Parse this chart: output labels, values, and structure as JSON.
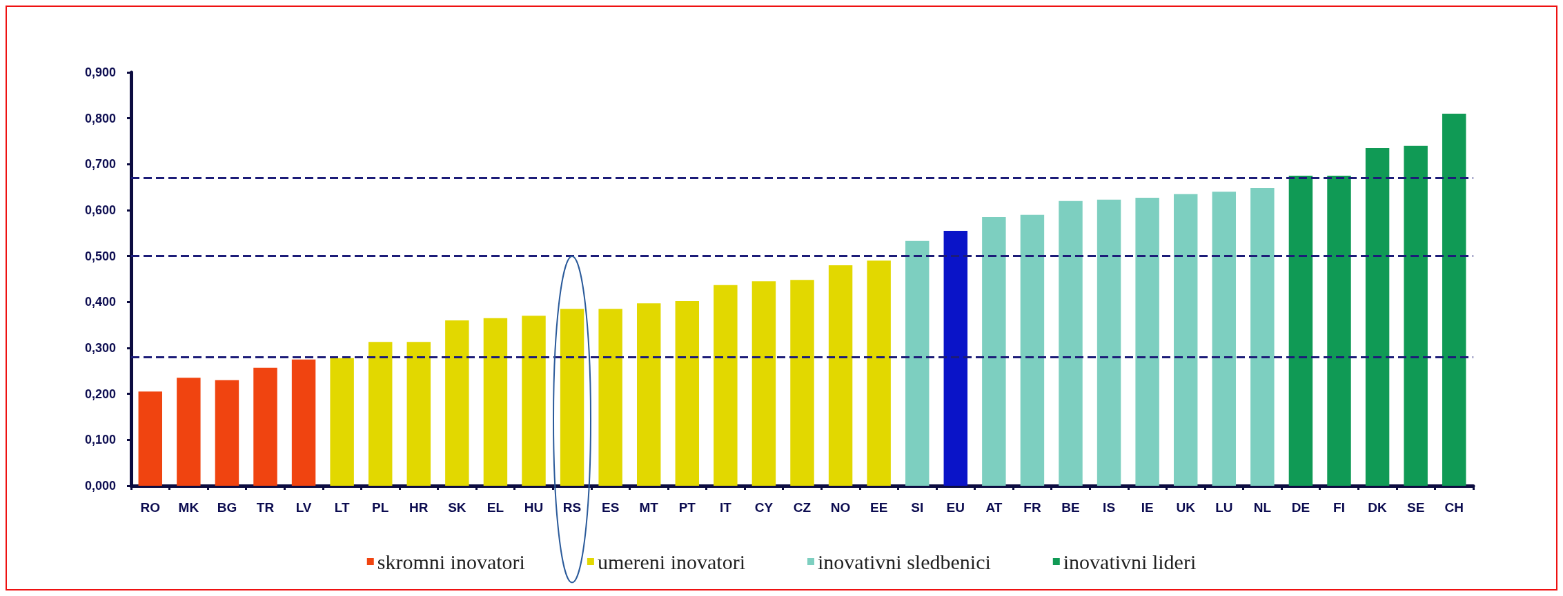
{
  "chart_data": {
    "type": "bar",
    "categories": [
      "RO",
      "MK",
      "BG",
      "TR",
      "LV",
      "LT",
      "PL",
      "HR",
      "SK",
      "EL",
      "HU",
      "RS",
      "ES",
      "MT",
      "PT",
      "IT",
      "CY",
      "CZ",
      "NO",
      "EE",
      "SI",
      "EU",
      "AT",
      "FR",
      "BE",
      "IS",
      "IE",
      "UK",
      "LU",
      "NL",
      "DE",
      "FI",
      "DK",
      "SE",
      "CH"
    ],
    "series": [
      {
        "name": "skromni inovatori",
        "color": "#f04410",
        "values": [
          0.205,
          0.235,
          0.23,
          0.257,
          0.275,
          null,
          null,
          null,
          null,
          null,
          null,
          null,
          null,
          null,
          null,
          null,
          null,
          null,
          null,
          null,
          null,
          null,
          null,
          null,
          null,
          null,
          null,
          null,
          null,
          null,
          null,
          null,
          null,
          null,
          null
        ]
      },
      {
        "name": "umereni inovatori",
        "color": "#e2d800",
        "values": [
          null,
          null,
          null,
          null,
          null,
          0.278,
          0.313,
          0.313,
          0.36,
          0.365,
          0.37,
          0.385,
          0.385,
          0.397,
          0.402,
          0.437,
          0.445,
          0.448,
          0.48,
          0.49,
          null,
          null,
          null,
          null,
          null,
          null,
          null,
          null,
          null,
          null,
          null,
          null,
          null,
          null,
          null
        ]
      },
      {
        "name": "inovativni sledbenici",
        "color": "#7dcfc0",
        "values": [
          null,
          null,
          null,
          null,
          null,
          null,
          null,
          null,
          null,
          null,
          null,
          null,
          null,
          null,
          null,
          null,
          null,
          null,
          null,
          null,
          0.533,
          null,
          0.585,
          0.59,
          0.62,
          0.623,
          0.627,
          0.635,
          0.64,
          0.648,
          null,
          null,
          null,
          null,
          null
        ]
      },
      {
        "color": "#0a14c8",
        "values": [
          null,
          null,
          null,
          null,
          null,
          null,
          null,
          null,
          null,
          null,
          null,
          null,
          null,
          null,
          null,
          null,
          null,
          null,
          null,
          null,
          null,
          0.555,
          null,
          null,
          null,
          null,
          null,
          null,
          null,
          null,
          null,
          null,
          null,
          null,
          null
        ]
      },
      {
        "name": "inovativni lideri",
        "color": "#109a55",
        "values": [
          null,
          null,
          null,
          null,
          null,
          null,
          null,
          null,
          null,
          null,
          null,
          null,
          null,
          null,
          null,
          null,
          null,
          null,
          null,
          null,
          null,
          null,
          null,
          null,
          null,
          null,
          null,
          null,
          null,
          null,
          0.675,
          0.675,
          0.735,
          0.74,
          0.81
        ]
      }
    ],
    "ylim": [
      0,
      0.9
    ],
    "yticks": [
      {
        "value": 0,
        "label": "0,000"
      },
      {
        "value": 0.1,
        "label": "0,100"
      },
      {
        "value": 0.2,
        "label": "0,200"
      },
      {
        "value": 0.3,
        "label": "0,300"
      },
      {
        "value": 0.4,
        "label": "0,400"
      },
      {
        "value": 0.5,
        "label": "0,500"
      },
      {
        "value": 0.6,
        "label": "0,600"
      },
      {
        "value": 0.7,
        "label": "0,700"
      },
      {
        "value": 0.8,
        "label": "0,800"
      },
      {
        "value": 0.9,
        "label": "0,900"
      }
    ],
    "ref_lines": [
      {
        "axis": "y",
        "value": 0.278,
        "color": "#1c1c78",
        "line_style": "dashed"
      },
      {
        "axis": "y",
        "value": 0.5,
        "color": "#1c1c78",
        "line_style": "dashed"
      },
      {
        "axis": "y",
        "value": 0.668,
        "color": "#1c1c78",
        "line_style": "dashed"
      }
    ],
    "grid": false,
    "legend": "bottom"
  }
}
